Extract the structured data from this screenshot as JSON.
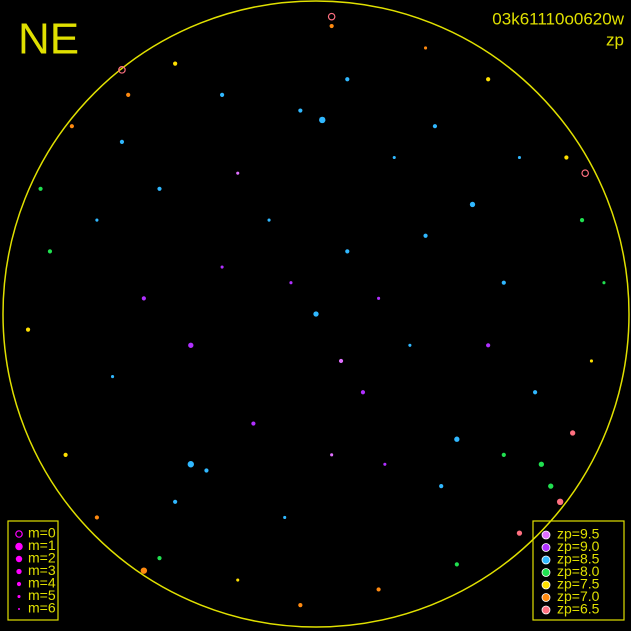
{
  "chart_data": {
    "type": "scatter",
    "title": "NE",
    "subtitle": "03k61110o0620w",
    "label": "zp",
    "xlim": [
      -1,
      1
    ],
    "ylim": [
      -1,
      1
    ],
    "frame_color": "#e0e000",
    "size_legend": {
      "color": "#ff00ff",
      "entries": [
        {
          "value": 0,
          "label": "m=0"
        },
        {
          "value": 1,
          "label": "m=1"
        },
        {
          "value": 2,
          "label": "m=2"
        },
        {
          "value": 3,
          "label": "m=3"
        },
        {
          "value": 4,
          "label": "m=4"
        },
        {
          "value": 5,
          "label": "m=5"
        },
        {
          "value": 6,
          "label": "m=6"
        }
      ]
    },
    "color_legend": [
      {
        "value": 9.5,
        "label": "zp=9.5",
        "color": "#e070ff"
      },
      {
        "value": 9.0,
        "label": "zp=9.0",
        "color": "#b030ff"
      },
      {
        "value": 8.5,
        "label": "zp=8.5",
        "color": "#30b8ff"
      },
      {
        "value": 8.0,
        "label": "zp=8.0",
        "color": "#20e050"
      },
      {
        "value": 7.5,
        "label": "zp=7.5",
        "color": "#ffe000"
      },
      {
        "value": 7.0,
        "label": "zp=7.0",
        "color": "#ff8a10"
      },
      {
        "value": 6.5,
        "label": "zp=6.5",
        "color": "#ff7080"
      }
    ],
    "points": {
      "x": [
        0.1,
        -0.3,
        0.45,
        -0.2,
        0.05,
        0.25,
        -0.5,
        -0.4,
        0.6,
        0.3,
        -0.05,
        -0.65,
        0.15,
        -0.25,
        0.5,
        0.4,
        -0.1,
        0.7,
        -0.55,
        0.0,
        0.2,
        -0.35,
        0.35,
        -0.15,
        0.55,
        -0.7,
        0.1,
        -0.3,
        0.65,
        -0.45,
        0.08,
        0.22,
        -0.08,
        0.38,
        -0.62,
        0.85,
        -0.85,
        0.75,
        -0.8,
        0.2,
        -0.25,
        0.55,
        -0.6,
        0.88,
        -0.92,
        0.05,
        -0.05,
        0.65,
        -0.7,
        0.8,
        -0.45,
        0.35,
        -0.88,
        0.92,
        -0.5,
        0.45,
        0.82,
        0.72,
        0.6,
        -0.78,
        0.02,
        -0.4,
        0.78,
        -0.55,
        -0.62,
        0.86,
        0.05
      ],
      "y": [
        0.2,
        0.15,
        -0.4,
        -0.35,
        -0.45,
        0.5,
        0.4,
        -0.1,
        0.1,
        -0.1,
        0.65,
        -0.2,
        -0.25,
        0.45,
        0.35,
        -0.55,
        -0.65,
        -0.25,
        0.05,
        0.0,
        0.05,
        -0.5,
        0.25,
        0.3,
        -0.1,
        0.3,
        0.75,
        0.7,
        0.5,
        -0.6,
        -0.15,
        -0.48,
        0.1,
        0.6,
        0.55,
        0.3,
        0.2,
        -0.55,
        -0.45,
        -0.88,
        -0.85,
        0.75,
        0.7,
        -0.15,
        -0.05,
        0.92,
        -0.93,
        -0.7,
        -0.65,
        0.5,
        0.8,
        0.85,
        0.4,
        0.1,
        -0.78,
        -0.8,
        -0.38,
        -0.48,
        -0.45,
        0.6,
        0.62,
        -0.48,
        -0.6,
        -0.82,
        0.78,
        0.45,
        0.95
      ],
      "zp": [
        8.5,
        9.0,
        8.5,
        9.0,
        9.5,
        8.5,
        8.5,
        9.0,
        8.5,
        8.5,
        8.5,
        8.5,
        9.0,
        9.5,
        8.5,
        8.5,
        8.5,
        8.5,
        9.0,
        8.5,
        9.0,
        8.5,
        8.5,
        8.5,
        9.0,
        8.5,
        8.5,
        8.5,
        8.5,
        8.5,
        9.5,
        9.0,
        9.0,
        8.5,
        8.5,
        8.0,
        8.0,
        8.0,
        7.5,
        7.0,
        7.5,
        7.5,
        7.0,
        7.5,
        7.5,
        7.0,
        7.0,
        6.5,
        7.0,
        7.5,
        7.5,
        7.0,
        8.0,
        8.0,
        8.0,
        8.0,
        6.5,
        8.0,
        8.0,
        7.0,
        8.5,
        8.5,
        6.5,
        7.0,
        6.5,
        6.5,
        6.5
      ],
      "m": [
        4,
        5,
        3,
        4,
        5,
        5,
        4,
        3,
        4,
        5,
        4,
        5,
        4,
        5,
        3,
        4,
        5,
        4,
        4,
        3,
        5,
        4,
        4,
        5,
        4,
        5,
        4,
        4,
        5,
        4,
        4,
        5,
        5,
        4,
        4,
        4,
        4,
        3,
        4,
        4,
        5,
        4,
        4,
        5,
        4,
        4,
        4,
        3,
        4,
        4,
        4,
        5,
        4,
        5,
        4,
        4,
        3,
        3,
        4,
        4,
        2,
        2,
        2,
        2,
        0,
        0,
        0
      ]
    }
  }
}
